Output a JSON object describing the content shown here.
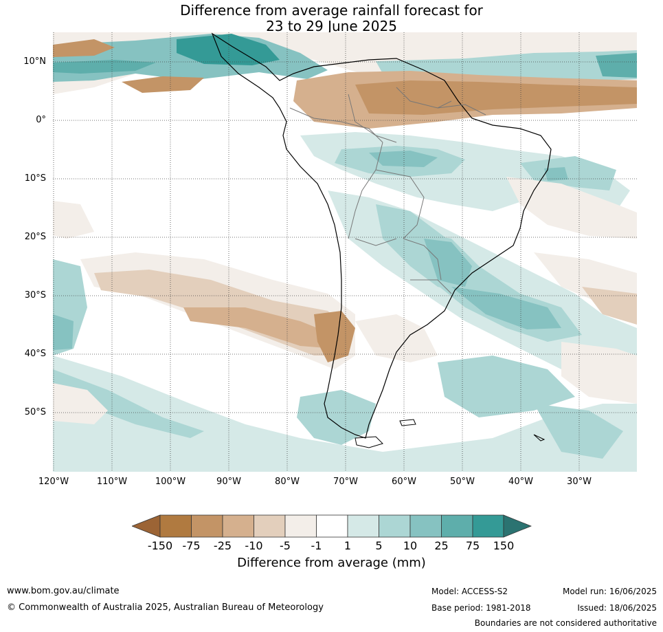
{
  "title": {
    "line1": "Difference from average rainfall forecast for",
    "line2": "23 to 29 June 2025"
  },
  "map": {
    "region": "South America",
    "latitude_labels": [
      "10°N",
      "0°",
      "10°S",
      "20°S",
      "30°S",
      "40°S",
      "50°S"
    ],
    "longitude_labels": [
      "120°W",
      "110°W",
      "100°W",
      "90°W",
      "80°W",
      "70°W",
      "60°W",
      "50°W",
      "40°W",
      "30°W"
    ],
    "gridlines": true
  },
  "legend": {
    "title": "Difference from average (mm)",
    "ticks": [
      "-150",
      "-75",
      "-25",
      "-10",
      "-5",
      "-1",
      "1",
      "5",
      "10",
      "25",
      "75",
      "150"
    ],
    "colors": [
      "#9c6435",
      "#b07a40",
      "#c39466",
      "#d5b08e",
      "#e3cfbc",
      "#f3eee9",
      "#ffffff",
      "#d5e9e7",
      "#acd6d4",
      "#86c2c1",
      "#5eaeab",
      "#349a96",
      "#2b7371"
    ]
  },
  "footer": {
    "website": "www.bom.gov.au/climate",
    "copyright": "© Commonwealth of Australia 2025, Australian Bureau of Meteorology",
    "model": "Model: ACCESS-S2",
    "base_period": "Base period: 1981-2018",
    "model_run": "Model run: 16/06/2025",
    "issued": "Issued: 18/06/2025",
    "disclaimer": "Boundaries are not considered authoritative"
  }
}
